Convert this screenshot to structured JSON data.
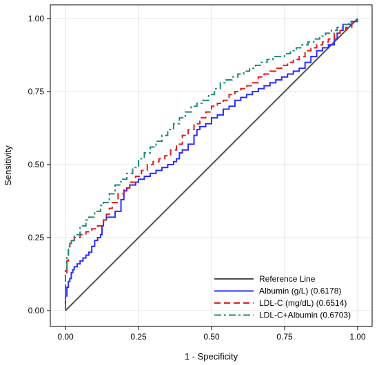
{
  "chart_data": {
    "type": "line",
    "title": "",
    "xlabel": "1 - Specificity",
    "ylabel": "Sensitivity",
    "xlim": [
      0,
      1
    ],
    "ylim": [
      0,
      1
    ],
    "xticks": [
      "0.00",
      "0.25",
      "0.50",
      "0.75",
      "1.00"
    ],
    "yticks": [
      "0.00",
      "0.25",
      "0.50",
      "0.75",
      "1.00"
    ],
    "grid": true,
    "legend_position": "bottom-right",
    "series": [
      {
        "name": "Reference Line",
        "color": "#4d4d4d",
        "style": "solid",
        "x": [
          0,
          1
        ],
        "y": [
          0,
          1
        ]
      },
      {
        "name": "Albumin (g/L)  (0.6178)",
        "color": "#2b2bff",
        "style": "solid",
        "x": [
          0,
          0,
          0.005,
          0.01,
          0.015,
          0.02,
          0.025,
          0.03,
          0.04,
          0.05,
          0.06,
          0.07,
          0.08,
          0.09,
          0.1,
          0.11,
          0.12,
          0.125,
          0.13,
          0.14,
          0.15,
          0.17,
          0.19,
          0.2,
          0.21,
          0.22,
          0.24,
          0.25,
          0.27,
          0.29,
          0.31,
          0.33,
          0.35,
          0.37,
          0.38,
          0.39,
          0.4,
          0.42,
          0.44,
          0.45,
          0.46,
          0.48,
          0.5,
          0.52,
          0.54,
          0.56,
          0.58,
          0.6,
          0.62,
          0.64,
          0.66,
          0.68,
          0.7,
          0.72,
          0.74,
          0.76,
          0.78,
          0.8,
          0.82,
          0.84,
          0.86,
          0.88,
          0.9,
          0.92,
          0.93,
          0.94,
          0.95,
          0.97,
          0.98,
          1
        ],
        "y": [
          0,
          0.05,
          0.08,
          0.1,
          0.11,
          0.13,
          0.14,
          0.15,
          0.16,
          0.17,
          0.18,
          0.19,
          0.2,
          0.22,
          0.24,
          0.25,
          0.26,
          0.29,
          0.31,
          0.32,
          0.32,
          0.34,
          0.38,
          0.41,
          0.42,
          0.43,
          0.44,
          0.45,
          0.46,
          0.47,
          0.48,
          0.49,
          0.5,
          0.51,
          0.52,
          0.54,
          0.55,
          0.57,
          0.6,
          0.62,
          0.63,
          0.64,
          0.66,
          0.67,
          0.69,
          0.7,
          0.72,
          0.73,
          0.74,
          0.75,
          0.76,
          0.77,
          0.78,
          0.79,
          0.8,
          0.81,
          0.82,
          0.83,
          0.85,
          0.87,
          0.89,
          0.9,
          0.91,
          0.93,
          0.95,
          0.96,
          0.98,
          0.98,
          0.99,
          1
        ]
      },
      {
        "name": "LDL-C (mg/dL)  (0.6514)",
        "color": "#e41a1c",
        "style": "dash",
        "x": [
          0,
          0,
          0.005,
          0.01,
          0.015,
          0.02,
          0.03,
          0.05,
          0.07,
          0.09,
          0.11,
          0.13,
          0.14,
          0.15,
          0.16,
          0.18,
          0.2,
          0.22,
          0.24,
          0.26,
          0.28,
          0.3,
          0.32,
          0.34,
          0.36,
          0.38,
          0.4,
          0.42,
          0.44,
          0.46,
          0.48,
          0.5,
          0.52,
          0.54,
          0.56,
          0.58,
          0.6,
          0.62,
          0.64,
          0.66,
          0.68,
          0.7,
          0.72,
          0.74,
          0.76,
          0.78,
          0.8,
          0.82,
          0.84,
          0.86,
          0.88,
          0.9,
          0.92,
          0.94,
          0.96,
          0.98,
          1
        ],
        "y": [
          0,
          0.12,
          0.17,
          0.21,
          0.23,
          0.24,
          0.25,
          0.26,
          0.27,
          0.28,
          0.29,
          0.31,
          0.33,
          0.35,
          0.37,
          0.4,
          0.42,
          0.44,
          0.46,
          0.48,
          0.5,
          0.51,
          0.52,
          0.53,
          0.55,
          0.57,
          0.6,
          0.62,
          0.64,
          0.66,
          0.68,
          0.7,
          0.71,
          0.72,
          0.74,
          0.75,
          0.76,
          0.77,
          0.78,
          0.8,
          0.81,
          0.82,
          0.83,
          0.84,
          0.85,
          0.86,
          0.87,
          0.89,
          0.9,
          0.91,
          0.92,
          0.93,
          0.95,
          0.96,
          0.97,
          0.99,
          1
        ]
      },
      {
        "name": "LDL-C+Albumin  (0.6703)",
        "color": "#1a8a7a",
        "style": "dashdot",
        "x": [
          0,
          0,
          0.005,
          0.01,
          0.015,
          0.02,
          0.03,
          0.05,
          0.07,
          0.08,
          0.1,
          0.12,
          0.13,
          0.15,
          0.17,
          0.19,
          0.21,
          0.23,
          0.25,
          0.27,
          0.29,
          0.31,
          0.33,
          0.35,
          0.37,
          0.39,
          0.41,
          0.43,
          0.45,
          0.47,
          0.49,
          0.51,
          0.53,
          0.55,
          0.57,
          0.59,
          0.61,
          0.63,
          0.65,
          0.67,
          0.69,
          0.71,
          0.73,
          0.75,
          0.77,
          0.79,
          0.81,
          0.83,
          0.85,
          0.87,
          0.89,
          0.91,
          0.93,
          0.95,
          0.97,
          1
        ],
        "y": [
          0,
          0.14,
          0.19,
          0.22,
          0.23,
          0.24,
          0.26,
          0.29,
          0.31,
          0.32,
          0.34,
          0.36,
          0.37,
          0.4,
          0.43,
          0.45,
          0.47,
          0.49,
          0.52,
          0.54,
          0.56,
          0.58,
          0.6,
          0.62,
          0.64,
          0.66,
          0.68,
          0.7,
          0.71,
          0.72,
          0.74,
          0.76,
          0.78,
          0.79,
          0.8,
          0.81,
          0.82,
          0.83,
          0.84,
          0.85,
          0.86,
          0.87,
          0.87,
          0.88,
          0.89,
          0.9,
          0.91,
          0.92,
          0.93,
          0.94,
          0.95,
          0.96,
          0.97,
          0.98,
          0.99,
          1
        ]
      }
    ]
  }
}
